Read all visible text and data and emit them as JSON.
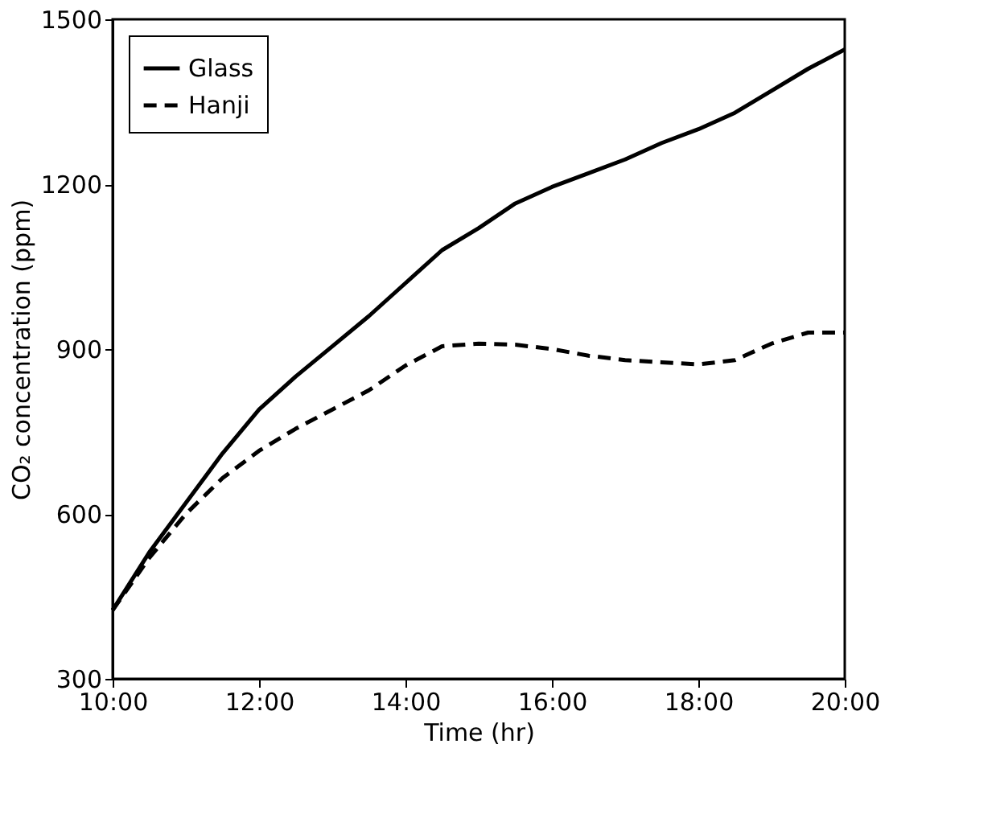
{
  "chart_data": {
    "type": "line",
    "xlabel": "Time (hr)",
    "ylabel": "CO₂ concentration (ppm)",
    "x": [
      10,
      10.5,
      11,
      11.5,
      12,
      12.5,
      13,
      13.5,
      14,
      14.5,
      15,
      15.5,
      16,
      16.5,
      17,
      17.5,
      18,
      18.5,
      19,
      19.5,
      20
    ],
    "series": [
      {
        "name": "Glass",
        "color": "#000000",
        "line_style": "solid",
        "values": [
          425,
          530,
          620,
          710,
          790,
          850,
          905,
          960,
          1020,
          1080,
          1120,
          1165,
          1195,
          1220,
          1245,
          1275,
          1300,
          1330,
          1370,
          1410,
          1445
        ]
      },
      {
        "name": "Hanji",
        "color": "#000000",
        "line_style": "dashed",
        "values": [
          425,
          520,
          600,
          665,
          715,
          755,
          790,
          825,
          870,
          905,
          910,
          908,
          900,
          888,
          880,
          876,
          872,
          880,
          910,
          930,
          930
        ]
      }
    ],
    "xlim": [
      10,
      20
    ],
    "xticks": [
      {
        "value": 10,
        "label": "10:00"
      },
      {
        "value": 12,
        "label": "12:00"
      },
      {
        "value": 14,
        "label": "14:00"
      },
      {
        "value": 16,
        "label": "16:00"
      },
      {
        "value": 18,
        "label": "18:00"
      },
      {
        "value": 20,
        "label": "20:00"
      }
    ],
    "ylim": [
      300,
      1500
    ],
    "yticks": [
      300,
      600,
      900,
      1200,
      1500
    ],
    "grid": false,
    "legend": "top left",
    "marker": "none"
  }
}
